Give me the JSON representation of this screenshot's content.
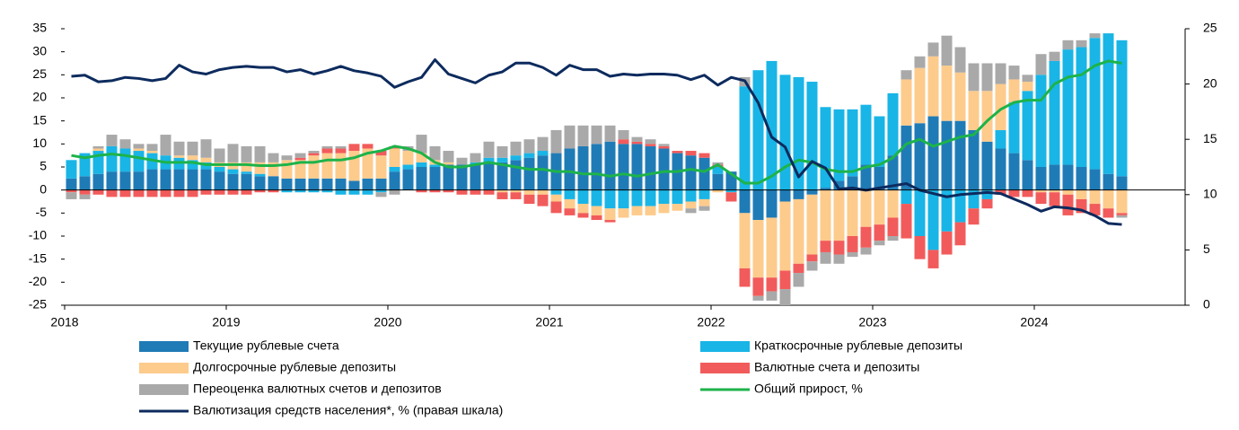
{
  "chart_data": {
    "type": "bar",
    "categories": [
      "2018",
      null,
      null,
      null,
      null,
      null,
      null,
      null,
      null,
      null,
      null,
      null,
      "2019",
      null,
      null,
      null,
      null,
      null,
      null,
      null,
      null,
      null,
      null,
      null,
      "2020",
      null,
      null,
      null,
      null,
      null,
      null,
      null,
      null,
      null,
      null,
      null,
      "2021",
      null,
      null,
      null,
      null,
      null,
      null,
      null,
      null,
      null,
      null,
      null,
      "2022",
      null,
      null,
      null,
      null,
      null,
      null,
      null,
      null,
      null,
      null,
      null,
      "2023",
      null,
      null,
      null,
      null,
      null,
      null,
      null,
      null,
      null,
      null,
      null,
      "2024",
      null,
      null,
      null,
      null,
      null,
      null
    ],
    "ylim": [
      -25,
      35
    ],
    "yticks": [
      -25,
      -20,
      -15,
      -10,
      -5,
      0,
      5,
      10,
      15,
      20,
      25,
      30,
      35
    ],
    "y2lim": [
      0,
      25
    ],
    "y2ticks": [
      0,
      5,
      10,
      15,
      20,
      25
    ],
    "series": [
      {
        "name": "Текущие рублевые счета",
        "type": "bar",
        "color": "#1f7bb6",
        "values": [
          2.5,
          3,
          3.5,
          4,
          4,
          4,
          4.5,
          4.5,
          4.5,
          4.5,
          4.5,
          4,
          3.5,
          3.5,
          3,
          3,
          2.5,
          2.5,
          2.5,
          2.5,
          2.5,
          2,
          2.5,
          2.5,
          4,
          4.5,
          5,
          5,
          5.5,
          5.5,
          5.5,
          6,
          6,
          6.5,
          7,
          7.5,
          8,
          9,
          9.5,
          10,
          10.5,
          10,
          10,
          9.5,
          9,
          8,
          7.5,
          7,
          3.5,
          4,
          -5,
          -6.5,
          -6,
          -2.5,
          -2,
          -1,
          0.5,
          2,
          3,
          5.5,
          5,
          7.5,
          14,
          14.5,
          16,
          15,
          15,
          13,
          10.5,
          9,
          8,
          6.5,
          5,
          5.5,
          5.5,
          5,
          4.5,
          3.5,
          3
        ]
      },
      {
        "name": "Краткосрочные рублевые депозиты",
        "type": "bar",
        "color": "#19b5e6",
        "values": [
          4,
          5,
          5,
          5.5,
          5,
          4.5,
          3.5,
          3,
          2.5,
          2,
          1.5,
          1,
          1,
          0.5,
          0.5,
          0,
          -0.5,
          -0.5,
          -0.5,
          -0.5,
          -1,
          -1,
          -1,
          -0.5,
          1,
          1,
          1,
          0.5,
          0,
          0,
          0.5,
          1,
          1,
          1,
          1,
          1,
          -1,
          -2,
          -3,
          -3.5,
          -4,
          -4,
          -3.5,
          -3.5,
          -3,
          -3,
          -2.5,
          -2,
          1.5,
          -0.5,
          22.5,
          26,
          28,
          25,
          24.5,
          23.5,
          17.5,
          15.5,
          14.5,
          13,
          11,
          13.5,
          -3,
          -10,
          -13,
          -9,
          -7,
          -4,
          -2,
          4,
          11,
          15,
          20,
          22.5,
          25,
          26,
          28.5,
          30.5,
          29.5
        ]
      },
      {
        "name": "Долгосрочные рублевые депозиты",
        "type": "bar",
        "color": "#fdcb8c",
        "values": [
          0,
          0,
          0.5,
          0,
          0,
          0.5,
          0.5,
          0,
          0.5,
          1,
          1,
          1,
          1.5,
          2,
          2.5,
          3,
          4,
          4,
          5,
          5.5,
          5.5,
          6.5,
          6.5,
          5,
          4,
          3,
          2,
          1,
          0.5,
          0,
          0,
          0,
          -0.5,
          -0.5,
          -1,
          -1,
          -1.5,
          -2,
          -2,
          -2,
          -2.5,
          -2,
          -2,
          -2,
          -2,
          -1.5,
          -1.5,
          -1.5,
          -0.5,
          0,
          -12,
          -12.5,
          -13,
          -15,
          -14,
          -13,
          -11,
          -11,
          -10,
          -8,
          -7.5,
          -6,
          10,
          12,
          13,
          12,
          10.5,
          8.5,
          11,
          10,
          5,
          2,
          -0.5,
          -0.5,
          -1,
          -2,
          -3,
          -4,
          -5
        ]
      },
      {
        "name": "Валютные счета и депозиты",
        "type": "bar",
        "color": "#f25b5b",
        "values": [
          -0.5,
          -1,
          -1,
          -1.5,
          -1.5,
          -1.5,
          -1.5,
          -1.5,
          -1.5,
          -1.5,
          -1,
          -1,
          -1,
          -1,
          -0.5,
          -0.5,
          0,
          0.5,
          0.5,
          1,
          1,
          1.5,
          1,
          1,
          0.5,
          0,
          -0.5,
          -0.5,
          -0.5,
          -1,
          -1,
          -1,
          -1.5,
          -1.5,
          -2,
          -2.5,
          -2.5,
          -1.5,
          -1,
          -1,
          -0.5,
          1,
          0.5,
          0.5,
          0.5,
          0.5,
          1,
          1,
          0.5,
          -2,
          -4,
          -4,
          -3,
          -4,
          -2,
          -1.5,
          -2.5,
          -3,
          -3.5,
          -4.5,
          -3.5,
          -4,
          -7.5,
          -5,
          -4,
          -5,
          -5,
          -3.5,
          -2,
          -1,
          -1.5,
          -1.5,
          -2.5,
          -3,
          -4.5,
          -3,
          -2.5,
          -2,
          -0.5
        ]
      },
      {
        "name": "Переоценка валютных счетов и депозитов",
        "type": "bar",
        "color": "#a9a9a9",
        "values": [
          -1.5,
          -1,
          0.5,
          2.5,
          2,
          1,
          1.5,
          4.5,
          3,
          3,
          4,
          3,
          4,
          3.5,
          3.5,
          2,
          1,
          1,
          0.5,
          0.5,
          0.5,
          0,
          0,
          -1,
          -1,
          1,
          4,
          3,
          2.5,
          1.5,
          2,
          3.5,
          2.5,
          3,
          3,
          3,
          5,
          5,
          4.5,
          4,
          3.5,
          2,
          1,
          1,
          0.5,
          0,
          -1,
          -1,
          0.5,
          0,
          2,
          -1,
          -2,
          -3.5,
          -3,
          -2,
          -2.5,
          -2,
          -1,
          -1.5,
          -1,
          -1,
          2,
          2.5,
          3,
          6.5,
          5.5,
          6,
          6,
          4.5,
          3,
          1.5,
          4.5,
          2,
          2,
          1.5,
          1,
          0,
          -0.5
        ]
      },
      {
        "name": "Общий прирост, %",
        "type": "line",
        "color": "#1db34a",
        "values": [
          7.5,
          7,
          7.5,
          7.8,
          7.5,
          7,
          6.5,
          6,
          6,
          6,
          5.5,
          5.5,
          5.5,
          5.5,
          5.3,
          5.3,
          5.5,
          6,
          6,
          6.5,
          6.5,
          7,
          8,
          8.5,
          9.5,
          9,
          8,
          6,
          5,
          5,
          5.5,
          6,
          5.5,
          5,
          4.5,
          4.5,
          4,
          4,
          3.5,
          3.5,
          3,
          3.5,
          3,
          3.5,
          4,
          4,
          4.5,
          4,
          5.5,
          3.5,
          1.5,
          1.5,
          3,
          5,
          6.5,
          6,
          4.5,
          4,
          4,
          5,
          5.5,
          7,
          10,
          11,
          9.5,
          10.5,
          11.5,
          12,
          15,
          17.5,
          19,
          19.5,
          19.5,
          23,
          24.5,
          25,
          27,
          28,
          27.5
        ]
      },
      {
        "name": "Валютизация средств населения*, % (правая шкала)",
        "type": "line",
        "axis": "y2",
        "color": "#0d2b5e",
        "values": [
          20.7,
          20.8,
          20.2,
          20.3,
          20.6,
          20.5,
          20.3,
          20.5,
          21.7,
          21.1,
          20.9,
          21.3,
          21.5,
          21.6,
          21.5,
          21.5,
          21.1,
          21.3,
          20.9,
          21.2,
          21.6,
          21.2,
          21,
          20.7,
          19.7,
          20.2,
          20.6,
          22.2,
          20.9,
          20.5,
          20.1,
          20.8,
          21.1,
          21.9,
          21.9,
          21.5,
          20.8,
          21.7,
          21.3,
          21.3,
          20.7,
          20.9,
          20.8,
          20.9,
          20.9,
          20.8,
          20.4,
          20.8,
          19.9,
          20.6,
          20.3,
          18.3,
          15.2,
          14.3,
          11.6,
          13,
          12.4,
          10.5,
          10.6,
          10.4,
          10.6,
          10.8,
          11,
          10.4,
          10.1,
          9.8,
          10,
          10.1,
          10.2,
          10.1,
          9.6,
          9.1,
          8.5,
          8.9,
          8.8,
          8.6,
          8.1,
          7.4,
          7.3
        ]
      }
    ]
  }
}
